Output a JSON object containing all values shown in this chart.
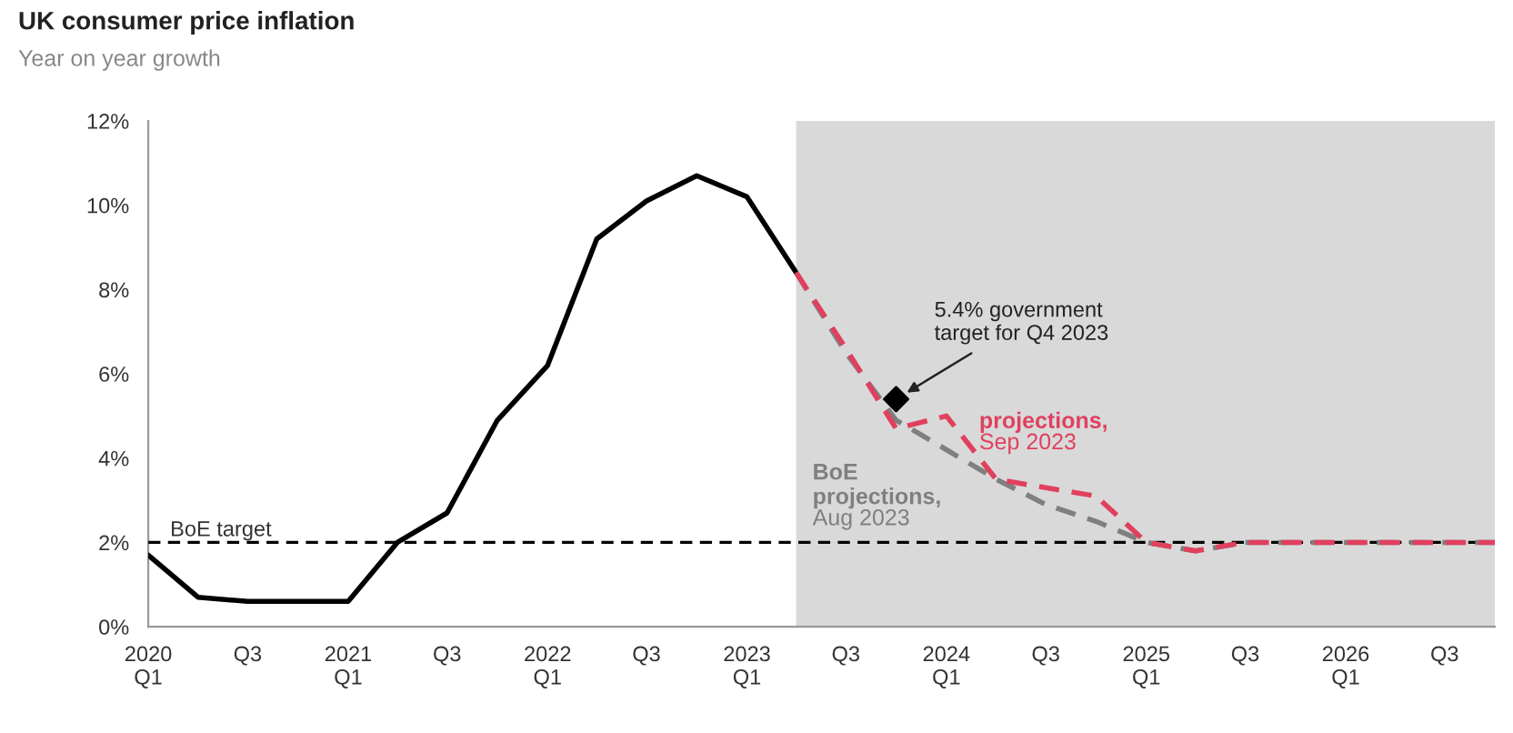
{
  "chart_data": {
    "type": "line",
    "title": "UK consumer price inflation",
    "subtitle": "Year on year growth",
    "xlim": [
      "2020-01",
      "2026-10"
    ],
    "ylim": [
      0,
      12
    ],
    "xticks": [
      {
        "value": "2020-01",
        "label": "2020\nQ1"
      },
      {
        "value": "2020-07",
        "label": "Q3"
      },
      {
        "value": "2021-01",
        "label": "2021\nQ1"
      },
      {
        "value": "2021-07",
        "label": "Q3"
      },
      {
        "value": "2022-01",
        "label": "2022\nQ1"
      },
      {
        "value": "2022-07",
        "label": "Q3"
      },
      {
        "value": "2023-01",
        "label": "2023\nQ1"
      },
      {
        "value": "2023-07",
        "label": "Q3"
      },
      {
        "value": "2024-01",
        "label": "2024\nQ1"
      },
      {
        "value": "2024-07",
        "label": "Q3"
      },
      {
        "value": "2025-01",
        "label": "2025\nQ1"
      },
      {
        "value": "2025-07",
        "label": "Q3"
      },
      {
        "value": "2026-01",
        "label": "2026\nQ1"
      },
      {
        "value": "2026-07",
        "label": "Q3"
      }
    ],
    "yticks": [
      {
        "value": 0,
        "label": "0%"
      },
      {
        "value": 2,
        "label": "2%"
      },
      {
        "value": 4,
        "label": "4%"
      },
      {
        "value": 6,
        "label": "6%"
      },
      {
        "value": 8,
        "label": "8%"
      },
      {
        "value": 10,
        "label": "10%"
      },
      {
        "value": 12,
        "label": "12%"
      }
    ],
    "grid": false,
    "legend": false,
    "series": [
      {
        "color": "#000000",
        "line_style": "solid",
        "x": [
          "2020-01",
          "2020-04",
          "2020-07",
          "2020-10",
          "2021-01",
          "2021-04",
          "2021-07",
          "2021-10",
          "2022-01",
          "2022-04",
          "2022-07",
          "2022-10",
          "2023-01",
          "2023-04"
        ],
        "values": [
          1.7,
          0.7,
          0.6,
          0.6,
          0.6,
          2.0,
          2.7,
          4.9,
          6.2,
          9.2,
          10.1,
          10.7,
          10.2,
          8.4
        ]
      },
      {
        "name": "BoE\nprojections,\nAug 2023",
        "color": "#7f7f7f",
        "line_style": "dashed",
        "x": [
          "2023-04",
          "2023-07",
          "2023-10",
          "2024-01",
          "2024-04",
          "2024-07",
          "2024-10",
          "2025-01",
          "2025-04",
          "2025-07",
          "2025-10",
          "2026-01",
          "2026-04",
          "2026-07",
          "2026-10"
        ],
        "values": [
          8.4,
          6.5,
          4.9,
          4.2,
          3.5,
          2.9,
          2.5,
          2.0,
          1.8,
          2.0,
          2.0,
          2.0,
          2.0,
          2.0,
          2.0
        ]
      },
      {
        "name": "projections,\nSep 2023",
        "color": "#e0405e",
        "line_style": "dashed",
        "x": [
          "2023-04",
          "2023-07",
          "2023-10",
          "2024-01",
          "2024-04",
          "2024-07",
          "2024-10",
          "2025-01",
          "2025-04",
          "2025-07",
          "2025-10",
          "2026-01",
          "2026-04",
          "2026-07",
          "2026-10"
        ],
        "values": [
          8.4,
          6.6,
          4.7,
          5.0,
          3.5,
          3.3,
          3.1,
          2.0,
          1.8,
          2.0,
          2.0,
          2.0,
          2.0,
          2.0,
          2.0
        ]
      },
      {
        "type": "scatter",
        "marker": "diamond",
        "color": "#000000",
        "x": [
          "2023-10"
        ],
        "values": [
          5.4
        ]
      }
    ],
    "ref_lines": [
      {
        "axis": "y",
        "value": 2,
        "label": "BoE target",
        "color": "#000000",
        "line_style": "dashed"
      }
    ],
    "bands": [
      {
        "axis": "x",
        "from": "2023-04",
        "to": "2026-10",
        "color": "#d9d9d9"
      }
    ],
    "annotations": [
      {
        "text": "5.4% government\ntarget for Q4 2023",
        "x": "2023-10",
        "y": 5.4
      }
    ]
  }
}
